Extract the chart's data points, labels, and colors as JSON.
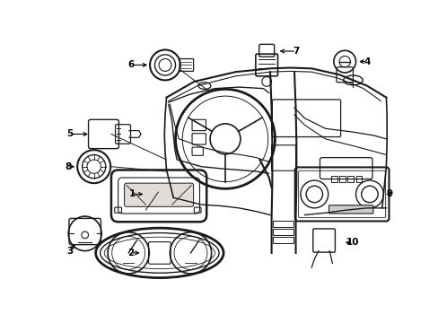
{
  "background_color": "#ffffff",
  "line_color": "#1a1a1a",
  "figsize": [
    4.89,
    3.6
  ],
  "dpi": 100,
  "xlim": [
    0,
    489
  ],
  "ylim": [
    0,
    360
  ]
}
